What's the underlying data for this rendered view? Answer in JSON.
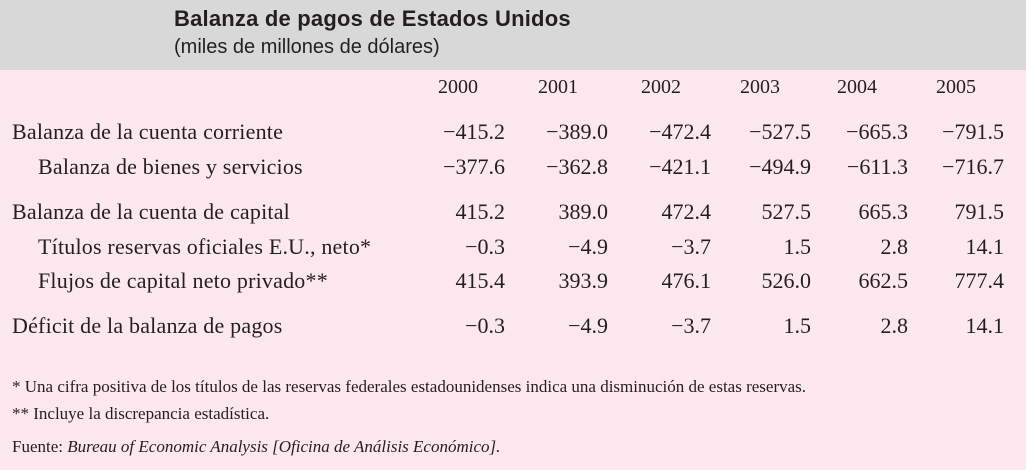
{
  "header": {
    "title": "Balanza de pagos de Estados Unidos",
    "subtitle": "(miles de millones de dólares)"
  },
  "table": {
    "years": [
      "2000",
      "2001",
      "2002",
      "2003",
      "2004",
      "2005"
    ],
    "rows": [
      {
        "label": "Balanza de la cuenta corriente",
        "values": [
          "−415.2",
          "−389.0",
          "−472.4",
          "−527.5",
          "−665.3",
          "−791.5"
        ]
      },
      {
        "label": "Balanza de bienes y servicios",
        "values": [
          "−377.6",
          "−362.8",
          "−421.1",
          "−494.9",
          "−611.3",
          "−716.7"
        ]
      },
      {
        "label": "Balanza de la cuenta de capital",
        "values": [
          "415.2",
          "389.0",
          "472.4",
          "527.5",
          "665.3",
          "791.5"
        ]
      },
      {
        "label": "Títulos reservas oficiales E.U., neto*",
        "values": [
          "−0.3",
          "−4.9",
          "−3.7",
          "1.5",
          "2.8",
          "14.1"
        ]
      },
      {
        "label": "Flujos de capital neto privado**",
        "values": [
          "415.4",
          "393.9",
          "476.1",
          "526.0",
          "662.5",
          "777.4"
        ]
      },
      {
        "label": "Déficit de la balanza de pagos",
        "values": [
          "−0.3",
          "−4.9",
          "−3.7",
          "1.5",
          "2.8",
          "14.1"
        ]
      }
    ]
  },
  "notes": {
    "note1": "* Una cifra positiva de los títulos de las reservas federales estadounidenses indica una disminución de estas reservas.",
    "note2": "** Incluye la discrepancia estadística.",
    "source_prefix": "Fuente: ",
    "source_text": "Bureau of Economic Analysis [Oficina de Análisis Económico]."
  }
}
